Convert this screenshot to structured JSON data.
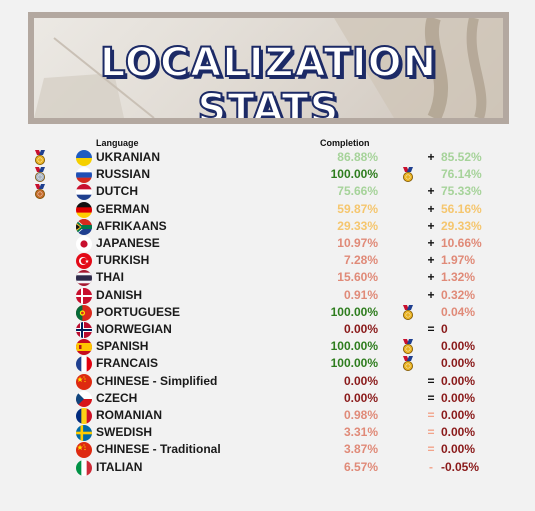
{
  "banner": {
    "title": "LOCALIZATION STATS"
  },
  "headers": {
    "language": "Language",
    "completion": "Completion"
  },
  "colors": {
    "full": "#2e7d1e",
    "high": "#a6d39a",
    "mid": "#f5c66e",
    "low": "#e08a78",
    "zero": "#8a1a1a",
    "change_full": "#2e7d1e",
    "change_neg": "#c8102e"
  },
  "rows": [
    {
      "medal": "gold",
      "flag": "ukraine",
      "language": "UKRANIAN",
      "completion": "86.88%",
      "ccolor": "high",
      "delta_medal": "",
      "sign": "+",
      "change": "85.52%",
      "xcolor": "high"
    },
    {
      "medal": "silver",
      "flag": "russia",
      "language": "RUSSIAN",
      "completion": "100.00%",
      "ccolor": "full",
      "delta_medal": "gold",
      "sign": "",
      "change": "76.14%",
      "xcolor": "high"
    },
    {
      "medal": "bronze",
      "flag": "netherlands",
      "language": "DUTCH",
      "completion": "75.66%",
      "ccolor": "high",
      "delta_medal": "",
      "sign": "+",
      "change": "75.33%",
      "xcolor": "high"
    },
    {
      "medal": "",
      "flag": "germany",
      "language": "GERMAN",
      "completion": "59.87%",
      "ccolor": "mid",
      "delta_medal": "",
      "sign": "+",
      "change": "56.16%",
      "xcolor": "mid"
    },
    {
      "medal": "",
      "flag": "southafrica",
      "language": "AFRIKAANS",
      "completion": "29.33%",
      "ccolor": "mid",
      "delta_medal": "",
      "sign": "+",
      "change": "29.33%",
      "xcolor": "mid"
    },
    {
      "medal": "",
      "flag": "japan",
      "language": "JAPANESE",
      "completion": "10.97%",
      "ccolor": "low",
      "delta_medal": "",
      "sign": "+",
      "change": "10.66%",
      "xcolor": "low"
    },
    {
      "medal": "",
      "flag": "turkey",
      "language": "TURKISH",
      "completion": "7.28%",
      "ccolor": "low",
      "delta_medal": "",
      "sign": "+",
      "change": "1.97%",
      "xcolor": "low"
    },
    {
      "medal": "",
      "flag": "thailand",
      "language": "THAI",
      "completion": "15.60%",
      "ccolor": "low",
      "delta_medal": "",
      "sign": "+",
      "change": "1.32%",
      "xcolor": "low"
    },
    {
      "medal": "",
      "flag": "denmark",
      "language": "DANISH",
      "completion": "0.91%",
      "ccolor": "low",
      "delta_medal": "",
      "sign": "+",
      "change": "0.32%",
      "xcolor": "low"
    },
    {
      "medal": "",
      "flag": "portugal",
      "language": "PORTUGUESE",
      "completion": "100.00%",
      "ccolor": "full",
      "delta_medal": "gold",
      "sign": "",
      "change": "0.04%",
      "xcolor": "low"
    },
    {
      "medal": "",
      "flag": "norway",
      "language": "NORWEGIAN",
      "completion": "0.00%",
      "ccolor": "zero",
      "delta_medal": "",
      "sign": "=",
      "change": "0",
      "xcolor": "zero"
    },
    {
      "medal": "",
      "flag": "spain",
      "language": "SPANISH",
      "completion": "100.00%",
      "ccolor": "full",
      "delta_medal": "gold",
      "sign": "",
      "change": "0.00%",
      "xcolor": "zero"
    },
    {
      "medal": "",
      "flag": "france",
      "language": "FRANCAIS",
      "completion": "100.00%",
      "ccolor": "full",
      "delta_medal": "gold",
      "sign": "",
      "change": "0.00%",
      "xcolor": "zero"
    },
    {
      "medal": "",
      "flag": "china",
      "language": "CHINESE - Simplified",
      "completion": "0.00%",
      "ccolor": "zero",
      "delta_medal": "",
      "sign": "=",
      "change": "0.00%",
      "xcolor": "zero"
    },
    {
      "medal": "",
      "flag": "czech",
      "language": "CZECH",
      "completion": "0.00%",
      "ccolor": "zero",
      "delta_medal": "",
      "sign": "=",
      "change": "0.00%",
      "xcolor": "zero"
    },
    {
      "medal": "",
      "flag": "romania",
      "language": "ROMANIAN",
      "completion": "0.98%",
      "ccolor": "low",
      "delta_medal": "",
      "sign": "=",
      "change": "0.00%",
      "xcolor": "zero"
    },
    {
      "medal": "",
      "flag": "sweden",
      "language": "SWEDISH",
      "completion": "3.31%",
      "ccolor": "low",
      "delta_medal": "",
      "sign": "=",
      "change": "0.00%",
      "xcolor": "zero"
    },
    {
      "medal": "",
      "flag": "china",
      "language": "CHINESE - Traditional",
      "completion": "3.87%",
      "ccolor": "low",
      "delta_medal": "",
      "sign": "=",
      "change": "0.00%",
      "xcolor": "zero"
    },
    {
      "medal": "",
      "flag": "italy",
      "language": "ITALIAN",
      "completion": "6.57%",
      "ccolor": "low",
      "delta_medal": "",
      "sign": "-",
      "change": "-0.05%",
      "xcolor": "zero"
    }
  ]
}
